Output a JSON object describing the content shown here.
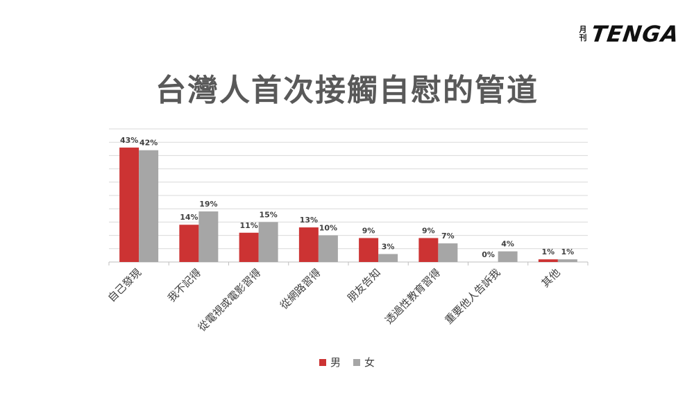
{
  "logo": {
    "small_top": "月",
    "small_bottom": "刊",
    "main": "TENGA"
  },
  "chart_data": {
    "type": "bar",
    "title": "台灣人首次接觸自慰的管道",
    "categories": [
      "自己發現",
      "我不記得",
      "從電視或電影習得",
      "從網路習得",
      "朋友告知",
      "透過性教育習得",
      "重要他人告訴我",
      "其他"
    ],
    "series": [
      {
        "name": "男",
        "color": "#cc3333",
        "values": [
          43,
          14,
          11,
          13,
          9,
          9,
          0,
          1
        ],
        "labels": [
          "43%",
          "14%",
          "11%",
          "13%",
          "9%",
          "9%",
          "0%",
          "1%"
        ]
      },
      {
        "name": "女",
        "color": "#a6a6a6",
        "values": [
          42,
          19,
          15,
          10,
          3,
          7,
          4,
          1
        ],
        "labels": [
          "42%",
          "19%",
          "15%",
          "10%",
          "3%",
          "7%",
          "4%",
          "1%"
        ]
      }
    ],
    "ylim": [
      0,
      50
    ],
    "grid": true,
    "legend_position": "bottom"
  }
}
